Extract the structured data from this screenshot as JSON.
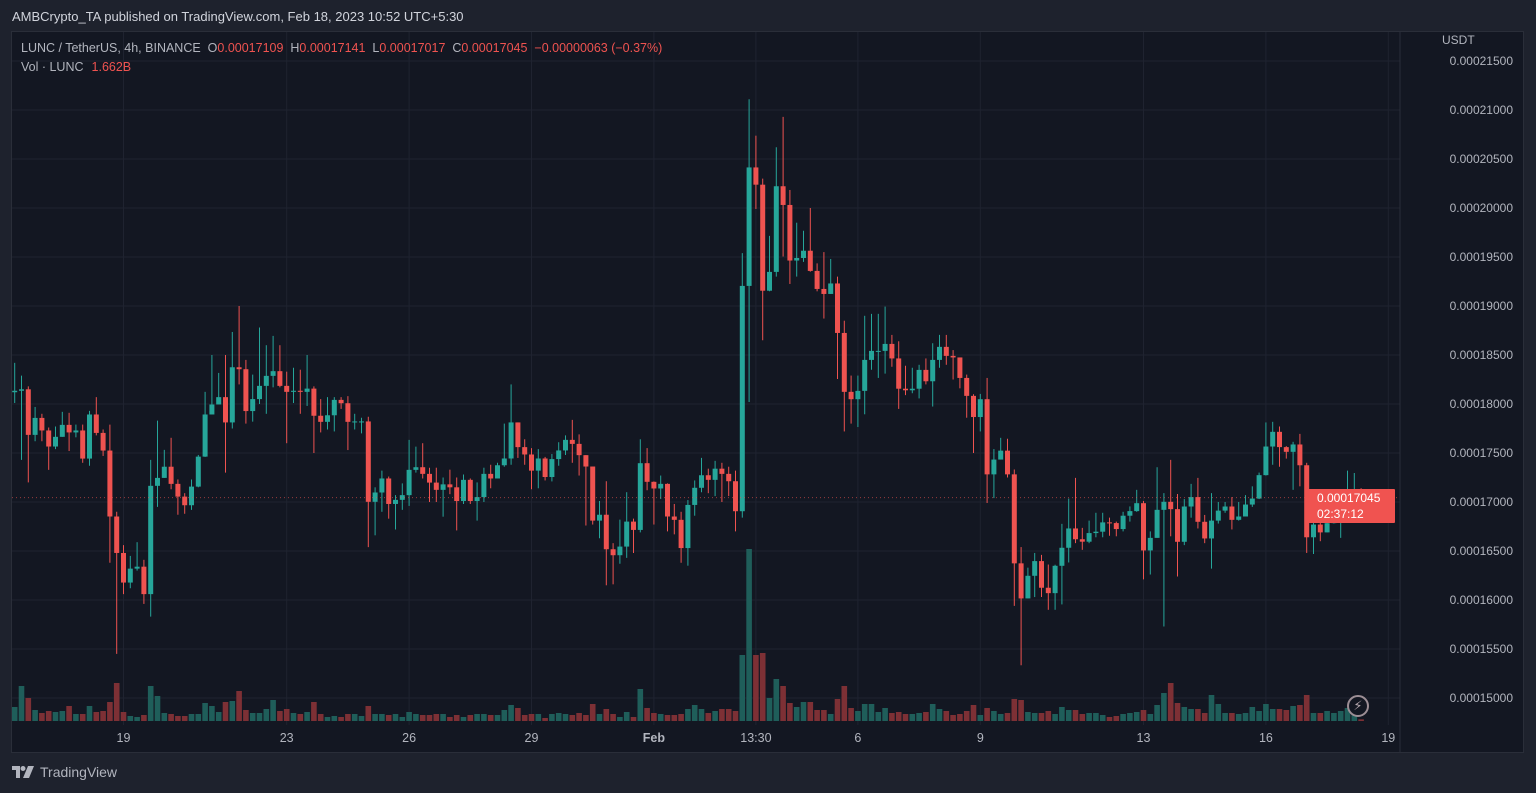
{
  "publication": "AMBCrypto_TA published on TradingView.com, Feb 18, 2023 10:52 UTC+5:30",
  "legend": {
    "symbol": "LUNC / TetherUS, 4h, BINANCE",
    "o_label": "O",
    "o_value": "0.00017109",
    "h_label": "H",
    "h_value": "0.00017141",
    "l_label": "L",
    "l_value": "0.00017017",
    "c_label": "C",
    "c_value": "0.00017045",
    "change": "−0.00000063 (−0.37%)",
    "vol_label": "Vol · LUNC",
    "vol_value": "1.662B"
  },
  "price_axis": {
    "unit": "USDT"
  },
  "last_price": {
    "price": "0.00017045",
    "countdown": "02:37:12"
  },
  "brand": "TradingView",
  "colors": {
    "up": "#26a69a",
    "down": "#ef5350",
    "up_volume": "#1f5e5a",
    "down_volume": "#7d3035",
    "background": "#131722",
    "grid": "#1f2330",
    "tag": "#f05350"
  },
  "chart_data": {
    "type": "candlestick",
    "title": "LUNC / TetherUS, 4h, BINANCE",
    "price_unit": "1e-8 USDT",
    "volume_unit": "B LUNC",
    "ylim": [
      14650,
      21650
    ],
    "y_ticks": [
      {
        "value": 21500,
        "label": "0.00021500"
      },
      {
        "value": 21000,
        "label": "0.00021000"
      },
      {
        "value": 20500,
        "label": "0.00020500"
      },
      {
        "value": 20000,
        "label": "0.00020000"
      },
      {
        "value": 19500,
        "label": "0.00019500"
      },
      {
        "value": 19000,
        "label": "0.00019000"
      },
      {
        "value": 18500,
        "label": "0.00018500"
      },
      {
        "value": 18000,
        "label": "0.00018000"
      },
      {
        "value": 17500,
        "label": "0.00017500"
      },
      {
        "value": 17000,
        "label": "0.00017000"
      },
      {
        "value": 16500,
        "label": "0.00016500"
      },
      {
        "value": 16000,
        "label": "0.00016000"
      },
      {
        "value": 15500,
        "label": "0.00015500"
      },
      {
        "value": 15000,
        "label": "0.00015000"
      }
    ],
    "x_ticks": [
      {
        "index": 16,
        "label": "19"
      },
      {
        "index": 40,
        "label": "23"
      },
      {
        "index": 58,
        "label": "26"
      },
      {
        "index": 76,
        "label": "29"
      },
      {
        "index": 94,
        "label": "Feb",
        "bold": true
      },
      {
        "index": 109,
        "label": "13:30"
      },
      {
        "index": 124,
        "label": "6"
      },
      {
        "index": 142,
        "label": "9"
      },
      {
        "index": 166,
        "label": "13"
      },
      {
        "index": 184,
        "label": "16"
      },
      {
        "index": 202,
        "label": "19"
      }
    ],
    "first_open": 18120,
    "close": [
      18135,
      18150,
      17685,
      17858,
      17730,
      17566,
      17665,
      17787,
      17710,
      17730,
      17443,
      17893,
      17705,
      17525,
      16852,
      16480,
      16178,
      16320,
      16340,
      16060,
      17165,
      17246,
      17360,
      17185,
      17055,
      16967,
      17157,
      17463,
      17893,
      17995,
      18070,
      17812,
      18375,
      18355,
      17928,
      18050,
      18185,
      18287,
      18335,
      18185,
      18124,
      18135,
      18124,
      18157,
      17880,
      17818,
      17885,
      18042,
      18008,
      17818,
      17822,
      17822,
      17002,
      17097,
      17240,
      16980,
      17022,
      17070,
      17328,
      17355,
      17287,
      17198,
      17124,
      17180,
      17150,
      17010,
      17226,
      17010,
      17050,
      17287,
      17240,
      17375,
      17444,
      17812,
      17560,
      17485,
      17320,
      17444,
      17255,
      17438,
      17526,
      17634,
      17593,
      17478,
      17362,
      16810,
      16870,
      16518,
      16457,
      16545,
      16800,
      16715,
      17396,
      17206,
      17138,
      17185,
      16852,
      16818,
      16530,
      16970,
      17145,
      17273,
      17226,
      17340,
      17287,
      17212,
      16906,
      19205,
      20414,
      20238,
      19156,
      19348,
      20222,
      20031,
      19464,
      19490,
      19564,
      19358,
      19174,
      19123,
      19230,
      18725,
      18124,
      18049,
      18134,
      18450,
      18542,
      18542,
      18613,
      18465,
      18156,
      18140,
      18156,
      18348,
      18232,
      18450,
      18583,
      18491,
      18475,
      18266,
      18083,
      17867,
      18049,
      17282,
      17433,
      17524,
      17282,
      16374,
      16016,
      16247,
      16397,
      16125,
      16070,
      16349,
      16533,
      16730,
      16620,
      16595,
      16683,
      16697,
      16792,
      16785,
      16724,
      16860,
      16907,
      16988,
      16506,
      16634,
      16920,
      17002,
      16927,
      16594,
      16954,
      17050,
      16798,
      16628,
      16810,
      16912,
      16954,
      16818,
      16852,
      16974,
      17035,
      17274,
      17566,
      17716,
      17560,
      17512,
      17587,
      17375,
      16640,
      16770,
      16690,
      16784,
      16832,
      16860,
      17015,
      17109,
      17045
    ],
    "high": [
      18420,
      18290,
      18180,
      17970,
      17900,
      17760,
      17770,
      17920,
      17910,
      17790,
      17790,
      17930,
      18070,
      17740,
      17790,
      16900,
      16560,
      16450,
      16590,
      16410,
      17430,
      17830,
      17532,
      17655,
      17230,
      17090,
      17230,
      17480,
      18124,
      18500,
      18317,
      18500,
      18735,
      19000,
      18450,
      18300,
      18780,
      18600,
      18695,
      18600,
      18330,
      18370,
      18350,
      18500,
      18180,
      18050,
      18070,
      18070,
      18070,
      18080,
      17900,
      17860,
      17870,
      17150,
      17320,
      17260,
      17070,
      17190,
      17634,
      17565,
      17600,
      17350,
      17350,
      17250,
      17330,
      17250,
      17280,
      17240,
      17200,
      17350,
      17380,
      17400,
      17800,
      18200,
      17810,
      17640,
      17550,
      17540,
      17460,
      17490,
      17610,
      17680,
      17838,
      17690,
      17410,
      17300,
      17010,
      17212,
      16580,
      16820,
      17100,
      16830,
      17640,
      17550,
      17210,
      17270,
      17190,
      16980,
      16900,
      17020,
      17220,
      17450,
      17340,
      17420,
      17400,
      17360,
      17320,
      19540,
      21110,
      20738,
      20300,
      19715,
      20620,
      20930,
      20184,
      19850,
      19768,
      20000,
      19435,
      19550,
      19480,
      19300,
      18850,
      18290,
      18290,
      18900,
      18920,
      18920,
      18994,
      18705,
      18640,
      18390,
      18370,
      18400,
      18465,
      18620,
      18705,
      18705,
      18550,
      18358,
      18300,
      18100,
      18103,
      18266,
      17540,
      17655,
      17646,
      17332,
      16540,
      16330,
      16480,
      16460,
      16362,
      16360,
      16777,
      17035,
      17246,
      16736,
      16810,
      16890,
      16890,
      16840,
      16800,
      16900,
      16955,
      17124,
      17010,
      16700,
      17355,
      17090,
      17430,
      17082,
      17030,
      17185,
      17246,
      16868,
      17090,
      17000,
      17000,
      17050,
      17000,
      17070,
      17160,
      17300,
      17812,
      17818,
      17770,
      17570,
      17614,
      17695,
      17400,
      16860,
      16840,
      16907,
      17002,
      16920,
      17320,
      17296,
      17141
    ],
    "low": [
      18010,
      17430,
      17200,
      17620,
      17620,
      17328,
      17540,
      17690,
      17520,
      17660,
      17400,
      17370,
      17680,
      17470,
      16380,
      15450,
      16060,
      16120,
      16300,
      15960,
      15830,
      16950,
      17280,
      17130,
      16870,
      16880,
      16920,
      17150,
      17460,
      17950,
      18000,
      17300,
      17750,
      18200,
      17800,
      17820,
      18000,
      17900,
      18170,
      18170,
      17600,
      18010,
      17900,
      17980,
      17500,
      17710,
      17740,
      17720,
      17950,
      17530,
      17740,
      17700,
      16540,
      16660,
      16900,
      16830,
      16720,
      16920,
      16960,
      17300,
      17240,
      17000,
      17000,
      16850,
      17080,
      16710,
      16980,
      16980,
      16810,
      17000,
      17140,
      17260,
      17360,
      17380,
      17450,
      17380,
      17130,
      17140,
      17220,
      17210,
      17370,
      17480,
      17400,
      17270,
      16760,
      16770,
      16630,
      16150,
      16160,
      16370,
      16430,
      16480,
      16690,
      17120,
      16770,
      17030,
      16700,
      16670,
      16380,
      16350,
      16860,
      17100,
      17090,
      17060,
      17000,
      17060,
      16700,
      16840,
      18020,
      19990,
      18650,
      19150,
      19300,
      19505,
      19225,
      19300,
      19450,
      19350,
      19150,
      18872,
      19150,
      18255,
      17720,
      17800,
      17765,
      17895,
      18350,
      18266,
      18310,
      18380,
      17950,
      18090,
      18110,
      18057,
      18200,
      17974,
      18370,
      18400,
      18250,
      18160,
      17860,
      17500,
      17720,
      16990,
      17040,
      17460,
      17250,
      15940,
      15334,
      16050,
      16030,
      16030,
      15900,
      15900,
      15955,
      16383,
      16580,
      16512,
      16580,
      16640,
      16640,
      16655,
      16650,
      16700,
      16800,
      16900,
      16210,
      16260,
      16820,
      15730,
      16650,
      16240,
      16560,
      16840,
      16730,
      16580,
      16320,
      16780,
      16890,
      16720,
      16810,
      16880,
      16950,
      17030,
      17270,
      17380,
      17360,
      17443,
      17124,
      17160,
      16480,
      16470,
      16600,
      16700,
      16780,
      16634,
      16860,
      16990,
      17017
    ],
    "volume": [
      14,
      35,
      23,
      11,
      8,
      10,
      9,
      10,
      15,
      7,
      7,
      15,
      9,
      10,
      19,
      38,
      9,
      5,
      4,
      6,
      35,
      25,
      8,
      7,
      5,
      5,
      7,
      7,
      18,
      15,
      9,
      19,
      20,
      30,
      11,
      8,
      8,
      12,
      21,
      10,
      12,
      8,
      7,
      9,
      19,
      7,
      4,
      5,
      4,
      7,
      7,
      5,
      15,
      7,
      7,
      6,
      7,
      4,
      9,
      7,
      6,
      6,
      7,
      7,
      4,
      6,
      4,
      6,
      7,
      7,
      6,
      6,
      11,
      16,
      13,
      6,
      7,
      7,
      3,
      7,
      8,
      7,
      6,
      8,
      6,
      17,
      7,
      12,
      7,
      4,
      9,
      4,
      32,
      13,
      8,
      7,
      6,
      6,
      7,
      12,
      16,
      12,
      8,
      10,
      12,
      12,
      10,
      66,
      172,
      66,
      68,
      23,
      42,
      35,
      18,
      14,
      19,
      19,
      11,
      11,
      7,
      22,
      35,
      13,
      10,
      17,
      17,
      9,
      13,
      8,
      9,
      7,
      7,
      8,
      9,
      17,
      12,
      10,
      6,
      7,
      10,
      16,
      6,
      13,
      10,
      7,
      8,
      22,
      21,
      9,
      8,
      8,
      10,
      7,
      14,
      11,
      11,
      7,
      8,
      8,
      6,
      4,
      5,
      7,
      8,
      9,
      11,
      7,
      16,
      28,
      38,
      18,
      14,
      12,
      12,
      8,
      26,
      17,
      8,
      8,
      7,
      8,
      14,
      10,
      17,
      12,
      12,
      11,
      15,
      16,
      26,
      8,
      8,
      10,
      8,
      10,
      13,
      8,
      1.662
    ],
    "grid": true
  }
}
